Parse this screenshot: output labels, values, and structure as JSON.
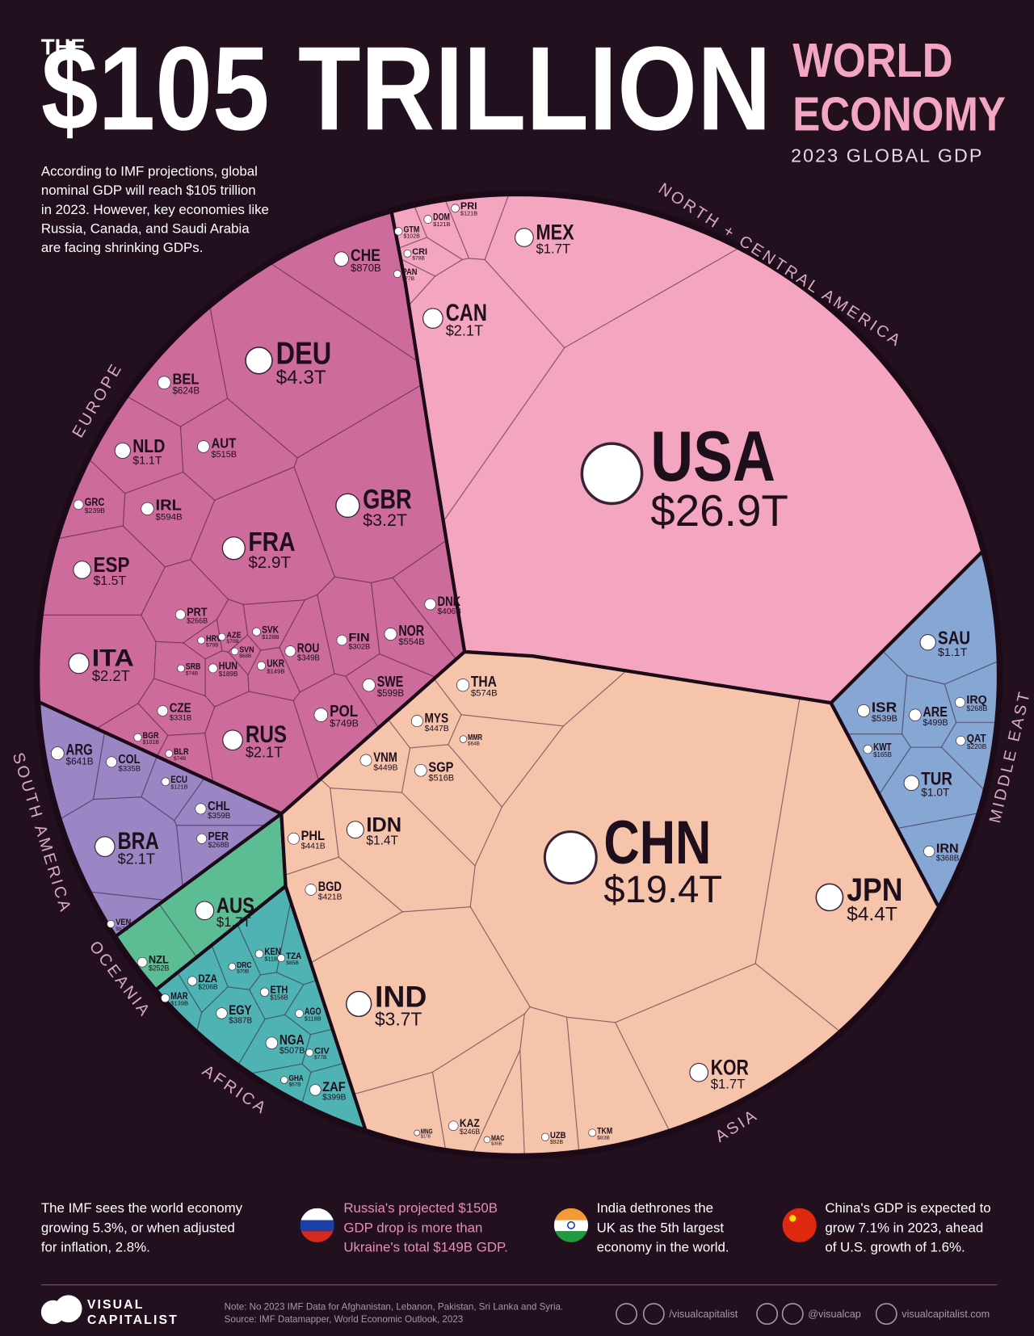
{
  "chart_data": {
    "type": "voronoi-treemap",
    "pre_title": "THE",
    "title": "$105 TRILLION",
    "title_right": [
      "WORLD",
      "ECONOMY"
    ],
    "subtitle": "2023 GLOBAL GDP",
    "intro": [
      "According to IMF projections, global",
      "nominal GDP will reach $105 trillion",
      "in 2023. However, key economies like",
      "Russia, Canada, and Saudi Arabia",
      "are facing shrinking GDPs."
    ],
    "regions": [
      {
        "name": "NORTH + CENTRAL AMERICA",
        "color": "#f4a5c0",
        "categories": [
          "USA",
          "CAN",
          "MEX",
          "PRI",
          "DOM",
          "GTM",
          "CRI",
          "PAN"
        ],
        "values": [
          26.9,
          2.1,
          1.7,
          0.121,
          0.121,
          0.102,
          0.078,
          0.077
        ],
        "value_labels": [
          "$26.9T",
          "$2.1T",
          "$1.7T",
          "$121B",
          "$121B",
          "$102B",
          "$78B",
          "$77B"
        ]
      },
      {
        "name": "EUROPE",
        "color": "#cd6c9c",
        "categories": [
          "DEU",
          "GBR",
          "FRA",
          "ITA",
          "RUS",
          "ESP",
          "NLD",
          "CHE",
          "POL",
          "BEL",
          "SWE",
          "IRL",
          "AUT",
          "NOR",
          "DNK",
          "ROU",
          "CZE",
          "FIN",
          "PRT",
          "GRC",
          "HUN",
          "UKR",
          "SVK",
          "BGR",
          "HRV",
          "SRB",
          "AZE",
          "SVN",
          "BLR"
        ],
        "values": [
          4.3,
          3.2,
          2.9,
          2.2,
          2.1,
          1.5,
          1.1,
          0.87,
          0.749,
          0.624,
          0.599,
          0.594,
          0.515,
          0.554,
          0.406,
          0.349,
          0.331,
          0.302,
          0.266,
          0.239,
          0.189,
          0.149,
          0.128,
          0.101,
          0.079,
          0.074,
          0.07,
          0.068,
          0.074
        ],
        "value_labels": [
          "$4.3T",
          "$3.2T",
          "$2.9T",
          "$2.2T",
          "$2.1T",
          "$1.5T",
          "$1.1T",
          "$870B",
          "$749B",
          "$624B",
          "$599B",
          "$594B",
          "$515B",
          "$554B",
          "$406B",
          "$349B",
          "$331B",
          "$302B",
          "$266B",
          "$239B",
          "$189B",
          "$149B",
          "$128B",
          "$101B",
          "$79B",
          "$74B",
          "$70B",
          "$68B",
          "$74B"
        ]
      },
      {
        "name": "SOUTH AMERICA",
        "color": "#9a86c5",
        "categories": [
          "BRA",
          "ARG",
          "CHL",
          "COL",
          "PER",
          "ECU",
          "VEN"
        ],
        "values": [
          2.1,
          0.641,
          0.359,
          0.335,
          0.268,
          0.121,
          0.087
        ],
        "value_labels": [
          "$2.1T",
          "$641B",
          "$359B",
          "$335B",
          "$268B",
          "$121B",
          "$87B"
        ]
      },
      {
        "name": "OCEANIA",
        "color": "#5cbd95",
        "categories": [
          "AUS",
          "NZL"
        ],
        "values": [
          1.7,
          0.252
        ],
        "value_labels": [
          "$1.7T",
          "$252B"
        ]
      },
      {
        "name": "AFRICA",
        "color": "#4fb3b4",
        "categories": [
          "NGA",
          "ZAF",
          "EGY",
          "DZA",
          "ETH",
          "MAR",
          "KEN",
          "AGO",
          "TZA",
          "CIV",
          "DRC",
          "GHA"
        ],
        "values": [
          0.507,
          0.399,
          0.387,
          0.206,
          0.156,
          0.139,
          0.118,
          0.118,
          0.085,
          0.077,
          0.07,
          0.067
        ],
        "value_labels": [
          "$507B",
          "$399B",
          "$387B",
          "$206B",
          "$156B",
          "$139B",
          "$118B",
          "$118B",
          "$85B",
          "$77B",
          "$70B",
          "$67B"
        ]
      },
      {
        "name": "ASIA",
        "color": "#f6c4ab",
        "categories": [
          "CHN",
          "JPN",
          "IND",
          "KOR",
          "IDN",
          "THA",
          "SGP",
          "VNM",
          "MYS",
          "PHL",
          "BGD",
          "MMR",
          "KAZ",
          "MAC",
          "UZB",
          "TKM",
          "MNG"
        ],
        "values": [
          19.4,
          4.4,
          3.7,
          1.7,
          1.4,
          0.574,
          0.516,
          0.449,
          0.447,
          0.441,
          0.421,
          0.064,
          0.246,
          0.036,
          0.092,
          0.083,
          0.017
        ],
        "value_labels": [
          "$19.4T",
          "$4.4T",
          "$3.7T",
          "$1.7T",
          "$1.4T",
          "$574B",
          "$516B",
          "$449B",
          "$447B",
          "$441B",
          "$421B",
          "$64B",
          "$246B",
          "$36B",
          "$92B",
          "$83B",
          "$17B"
        ]
      },
      {
        "name": "MIDDLE EAST",
        "color": "#86a6d3",
        "categories": [
          "SAU",
          "TUR",
          "ISR",
          "ARE",
          "IRN",
          "IRQ",
          "QAT",
          "KWT"
        ],
        "values": [
          1.1,
          1.0,
          0.539,
          0.499,
          0.368,
          0.268,
          0.22,
          0.165
        ],
        "value_labels": [
          "$1.1T",
          "$1.0T",
          "$539B",
          "$499B",
          "$368B",
          "$268B",
          "$220B",
          "$165B"
        ]
      }
    ],
    "footer": [
      [
        "The IMF sees the world economy",
        "growing 5.3%, or when adjusted",
        "for inflation, 2.8%."
      ],
      [
        "Russia's projected $150B",
        "GDP drop is more than",
        "Ukraine's total $149B GDP."
      ],
      [
        "India dethrones the",
        "UK as the 5th largest",
        "economy in the world."
      ],
      [
        "China's GDP is expected to",
        "grow 7.1% in 2023, ahead",
        "of U.S. growth of 1.6%."
      ]
    ],
    "logo": [
      "VISUAL",
      "CAPITALIST"
    ],
    "notes": [
      "Note: No 2023 IMF Data for Afghanistan, Lebanon, Pakistan, Sri Lanka and Syria.",
      "Source: IMF Datamapper, World Economic Outlook, 2023"
    ],
    "social": [
      "/visualcapitalist",
      "@visualcap",
      "visualcapitalist.com"
    ]
  }
}
